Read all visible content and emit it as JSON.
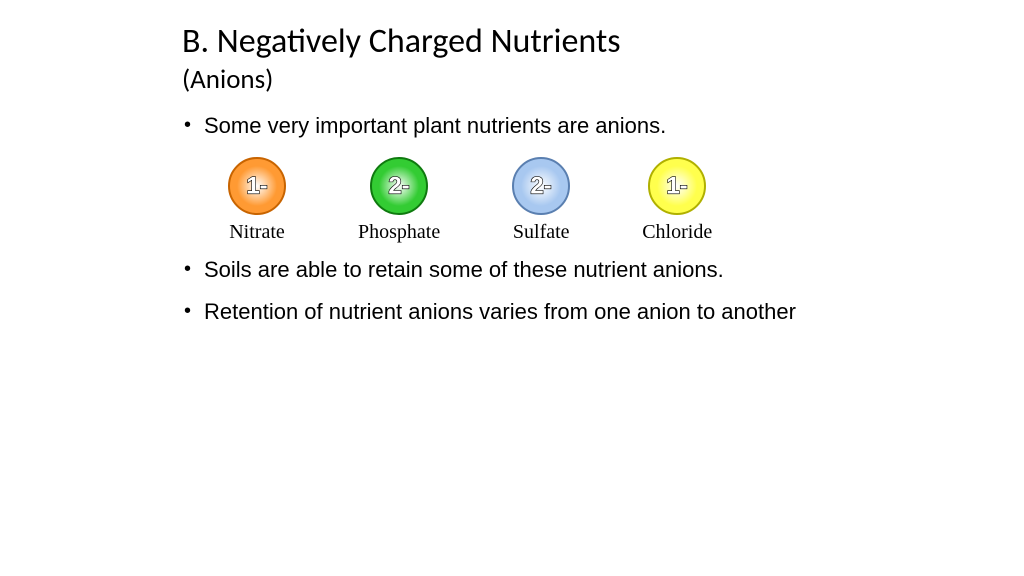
{
  "title": "B. Negatively Charged Nutrients",
  "subtitle": "(Anions)",
  "bullets": {
    "b1": "Some very important plant nutrients are anions.",
    "b2": "Soils are able to retain some of these nutrient anions.",
    "b3": "Retention of nutrient anions varies from one anion to another"
  },
  "ions": [
    {
      "label": "Nitrate",
      "charge": "1-",
      "fill": "#ff9a33",
      "stroke": "#c86400"
    },
    {
      "label": "Phosphate",
      "charge": "2-",
      "fill": "#33cc33",
      "stroke": "#0f7a0f"
    },
    {
      "label": "Sulfate",
      "charge": "2-",
      "fill": "#a8c8f0",
      "stroke": "#5a7fb0"
    },
    {
      "label": "Chloride",
      "charge": "1-",
      "fill": "#ffff4d",
      "stroke": "#b0b000"
    }
  ],
  "style": {
    "bg": "#ffffff",
    "ion_radius": 28,
    "title_fontsize": 34,
    "subtitle_fontsize": 27,
    "bullet_fontsize": 22,
    "label_fontsize": 20
  }
}
